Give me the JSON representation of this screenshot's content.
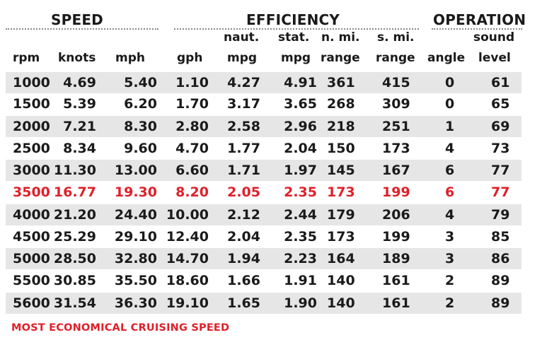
{
  "groups": {
    "speed": "SPEED",
    "efficiency": "EFFICIENCY",
    "operation": "OPERATION"
  },
  "headers_top": {
    "naut": "naut.",
    "stat": "stat.",
    "nmi": "n. mi.",
    "smi": "s. mi.",
    "sound": "sound"
  },
  "headers": {
    "rpm": "rpm",
    "knots": "knots",
    "mph": "mph",
    "gph": "gph",
    "naut_mpg": "mpg",
    "stat_mpg": "mpg",
    "nmi_range": "range",
    "smi_range": "range",
    "angle": "angle",
    "sound_level": "level"
  },
  "highlight_color": "#e0202a",
  "rows": [
    [
      "1000",
      "4.69",
      "5.40",
      "1.10",
      "4.27",
      "4.91",
      "361",
      "415",
      "0",
      "61"
    ],
    [
      "1500",
      "5.39",
      "6.20",
      "1.70",
      "3.17",
      "3.65",
      "268",
      "309",
      "0",
      "65"
    ],
    [
      "2000",
      "7.21",
      "8.30",
      "2.80",
      "2.58",
      "2.96",
      "218",
      "251",
      "1",
      "69"
    ],
    [
      "2500",
      "8.34",
      "9.60",
      "4.70",
      "1.77",
      "2.04",
      "150",
      "173",
      "4",
      "73"
    ],
    [
      "3000",
      "11.30",
      "13.00",
      "6.60",
      "1.71",
      "1.97",
      "145",
      "167",
      "6",
      "77"
    ],
    [
      "3500",
      "16.77",
      "19.30",
      "8.20",
      "2.05",
      "2.35",
      "173",
      "199",
      "6",
      "77"
    ],
    [
      "4000",
      "21.20",
      "24.40",
      "10.00",
      "2.12",
      "2.44",
      "179",
      "206",
      "4",
      "79"
    ],
    [
      "4500",
      "25.29",
      "29.10",
      "12.40",
      "2.04",
      "2.35",
      "173",
      "199",
      "3",
      "85"
    ],
    [
      "5000",
      "28.50",
      "32.80",
      "14.70",
      "1.94",
      "2.23",
      "164",
      "189",
      "3",
      "86"
    ],
    [
      "5500",
      "30.85",
      "35.50",
      "18.60",
      "1.66",
      "1.91",
      "140",
      "161",
      "2",
      "89"
    ],
    [
      "5600",
      "31.54",
      "36.30",
      "19.10",
      "1.65",
      "1.90",
      "140",
      "161",
      "2",
      "89"
    ]
  ],
  "footnote": "MOST ECONOMICAL CRUISING SPEED"
}
